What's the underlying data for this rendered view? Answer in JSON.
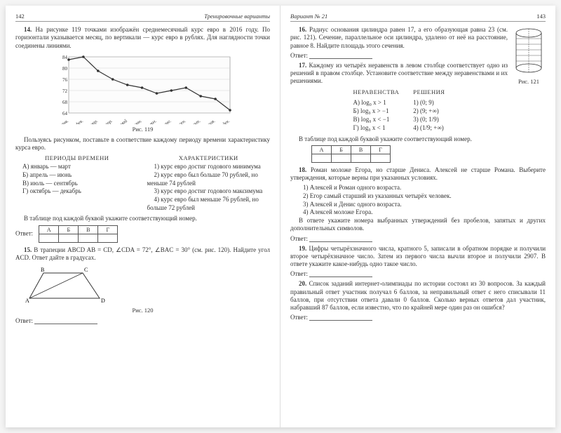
{
  "left": {
    "page_num": "142",
    "running_head": "Тренировочные варианты",
    "t14": {
      "num": "14.",
      "text": "На рисунке 119 точками изображён среднемесячный курс евро в 2016 году. По горизонтали указывается месяц, по вертикали — курс евро в рублях. Для наглядности точки соединены линиями."
    },
    "chart": {
      "y_ticks": [
        "84",
        "80",
        "76",
        "72",
        "68",
        "64"
      ],
      "x_ticks": [
        "янв.",
        "фев.",
        "мар.",
        "апр.",
        "май",
        "июн.",
        "июл.",
        "авг.",
        "сен.",
        "окт.",
        "ноя.",
        "дек."
      ],
      "points_y": [
        83,
        84,
        79,
        76,
        74,
        73,
        71,
        72,
        73,
        70,
        69,
        65
      ],
      "y_min": 64,
      "y_max": 84,
      "line_color": "#333333",
      "point_color": "#333333",
      "grid_color": "#cccccc",
      "caption": "Рис. 119"
    },
    "t14_after": "Пользуясь рисунком, поставьте в соответствие каждому периоду времени характеристику курса евро.",
    "periods_title": "ПЕРИОДЫ ВРЕМЕНИ",
    "chars_title": "ХАРАКТЕРИСТИКИ",
    "periods": [
      "А) январь — март",
      "Б) апрель — июнь",
      "В) июль — сентябрь",
      "Г) октябрь — декабрь"
    ],
    "chars": [
      "1) курс евро достиг годового минимума",
      "2) курс евро был больше 70 рублей, но меньше 74 рублей",
      "3) курс евро достиг годового максимума",
      "4) курс евро был меньше 76 рублей, но больше 72 рублей"
    ],
    "table_note": "В таблице под каждой буквой укажите соответствующий номер.",
    "table_heads": [
      "А",
      "Б",
      "В",
      "Г"
    ],
    "answer_label": "Ответ:",
    "t15": {
      "num": "15.",
      "text": "В трапеции ABCD   AB = CD, ∠CDA = 72°, ∠BAC = 30° (см. рис. 120). Найдите угол ACD. Ответ дайте в градусах."
    },
    "trap": {
      "caption": "Рис. 120",
      "labels": [
        "A",
        "B",
        "C",
        "D"
      ]
    }
  },
  "right": {
    "page_num": "143",
    "running_head": "Вариант № 21",
    "t16": {
      "num": "16.",
      "text": "Радиус основания цилиндра равен 17, а его образующая равна 23 (см. рис. 121). Сечение, параллельное оси цилиндра, удалено от неё на расстояние, равное 8. Найдите площадь этого сечения."
    },
    "cyl_caption": "Рис. 121",
    "t17": {
      "num": "17.",
      "text": "Каждому из четырёх неравенств в левом столбце соответствует одно из решений в правом столбце. Установите соответствие между неравенствами и их решениями."
    },
    "ineq_title": "НЕРАВЕНСТВА",
    "sol_title": "РЕШЕНИЯ",
    "ineq": [
      "А) log₉ x > 1",
      "Б) log₉ x > −1",
      "В) log₉ x < −1",
      "Г) log₉ x < 1"
    ],
    "sol": [
      "1)  (0; 9)",
      "2)  (9; +∞)",
      "3)  (0; 1/9)",
      "4)  (1/9; +∞)"
    ],
    "table_note": "В таблице под каждой буквой укажите соответствующий номер.",
    "table_heads": [
      "А",
      "Б",
      "В",
      "Г"
    ],
    "answer_label": "Ответ:",
    "t18": {
      "num": "18.",
      "text": "Роман моложе Егора, но старше Дениса. Алексей не старше Романа. Выберите утверждения, которые верны при указанных условиях.",
      "opts": [
        "1) Алексей и Роман одного возраста.",
        "2) Егор самый старший из указанных четырёх человек.",
        "3) Алексей и Денис одного возраста.",
        "4) Алексей моложе Егора."
      ],
      "after": "В ответе укажите номера выбранных утверждений без пробелов, запятых и других дополнительных символов."
    },
    "t19": {
      "num": "19.",
      "text": "Цифры четырёхзначного числа, кратного 5, записали в обратном порядке и получили второе четырёхзначное число. Затем из первого числа вычли второе и получили 2907. В ответе укажите какое-нибудь одно такое число."
    },
    "t20": {
      "num": "20.",
      "text": "Список заданий интернет-олимпиады по истории состоял из 30 вопросов. За каждый правильный ответ участник получал 6 баллов, за неправильный ответ с него списывали 11 баллов, при отсутствии ответа давали 0 баллов. Сколько верных ответов дал участник, набравший 87 баллов, если известно, что по крайней мере один раз он ошибся?"
    }
  }
}
